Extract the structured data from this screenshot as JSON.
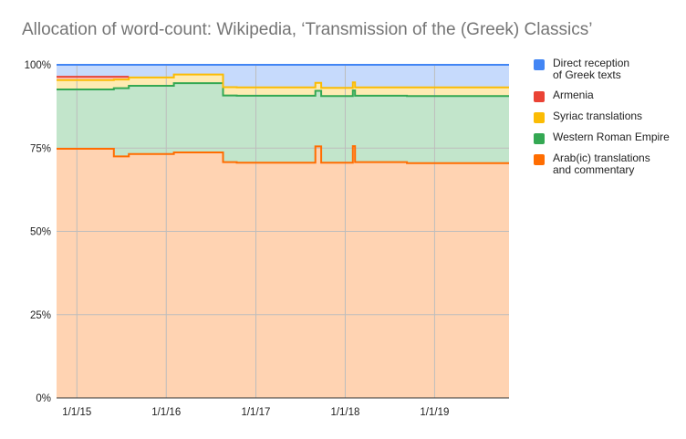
{
  "chart_data": {
    "type": "area",
    "stacked": true,
    "step": true,
    "title": "Allocation of word-count: Wikipedia, ‘Transmission of the (Greek) Classics’",
    "xlabel": "",
    "ylabel": "",
    "ylim": [
      0,
      1
    ],
    "xlim": [
      "2014-10-10",
      "2019-11-01"
    ],
    "x_ticks": [
      {
        "date": "2015-01-01",
        "label": "1/1/15"
      },
      {
        "date": "2016-01-01",
        "label": "1/1/16"
      },
      {
        "date": "2017-01-01",
        "label": "1/1/17"
      },
      {
        "date": "2018-01-01",
        "label": "1/1/18"
      },
      {
        "date": "2019-01-01",
        "label": "1/1/19"
      }
    ],
    "y_ticks": [
      {
        "value": 0,
        "label": "0%"
      },
      {
        "value": 0.25,
        "label": "25%"
      },
      {
        "value": 0.5,
        "label": "50%"
      },
      {
        "value": 0.75,
        "label": "75%"
      },
      {
        "value": 1,
        "label": "100%"
      }
    ],
    "grid": true,
    "legend_position": "right",
    "x": [
      "2014-10-10",
      "2015-06-01",
      "2015-08-01",
      "2016-02-01",
      "2016-08-20",
      "2016-10-15",
      "2017-09-01",
      "2017-09-25",
      "2018-02-01",
      "2018-02-10",
      "2018-09-10",
      "2019-11-01"
    ],
    "series": [
      {
        "name": "Arab(ic) translations\nand commentary",
        "color": "#ff6d01",
        "values": [
          0.748,
          0.725,
          0.732,
          0.737,
          0.708,
          0.706,
          0.755,
          0.706,
          0.756,
          0.708,
          0.705,
          0.705
        ]
      },
      {
        "name": "Western Roman Empire",
        "color": "#34a853",
        "values": [
          0.178,
          0.205,
          0.205,
          0.208,
          0.2,
          0.201,
          0.167,
          0.2,
          0.167,
          0.199,
          0.201,
          0.201
        ]
      },
      {
        "name": "Syriac translations",
        "color": "#fbbc04",
        "values": [
          0.028,
          0.026,
          0.025,
          0.026,
          0.025,
          0.025,
          0.024,
          0.025,
          0.024,
          0.025,
          0.026,
          0.026
        ]
      },
      {
        "name": "Armenia",
        "color": "#ea4335",
        "values": [
          0.01,
          0.008,
          0,
          0,
          0,
          0,
          0,
          0,
          0,
          0,
          0,
          0
        ]
      },
      {
        "name": "Direct reception\n of Greek texts",
        "color": "#4285f4",
        "values": [
          0.036,
          0.036,
          0.038,
          0.029,
          0.067,
          0.068,
          0.054,
          0.069,
          0.053,
          0.068,
          0.068,
          0.068
        ]
      }
    ]
  }
}
